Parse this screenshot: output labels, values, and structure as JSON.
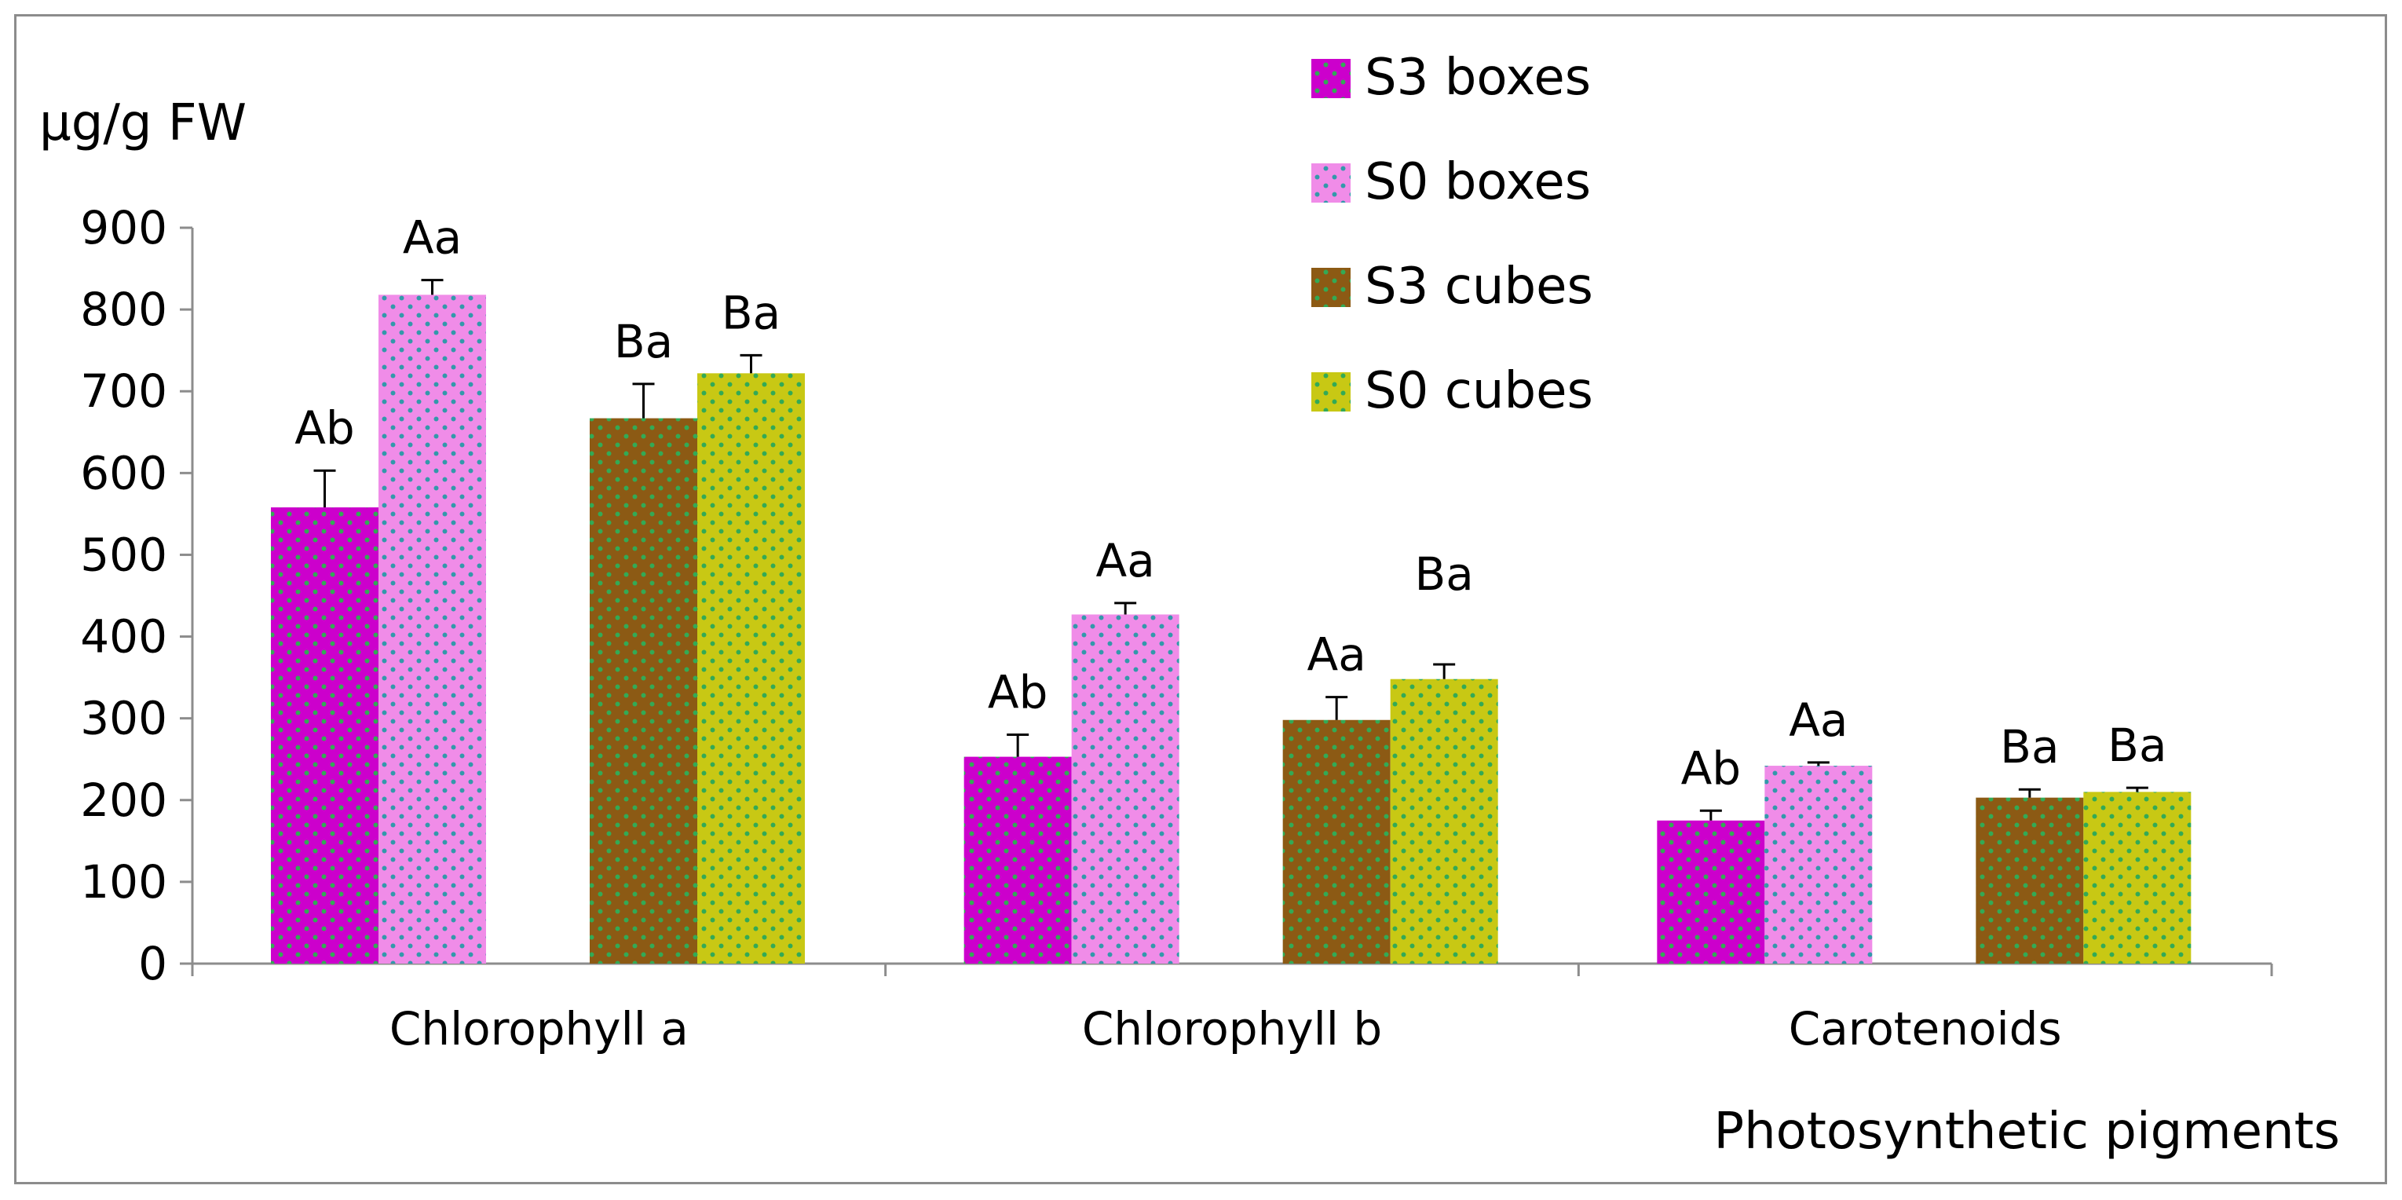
{
  "chart_data": {
    "type": "bar",
    "ylabel": "µg/g FW",
    "xlabel": "Photosynthetic pigments",
    "ylim": [
      0,
      900
    ],
    "yticks": [
      0,
      100,
      200,
      300,
      400,
      500,
      600,
      700,
      800,
      900
    ],
    "categories": [
      "Chlorophyll a",
      "Chlorophyll b",
      "Carotenoids"
    ],
    "legend_position": "top-right",
    "grid": false,
    "series": [
      {
        "name": "S3 boxes",
        "color": "#cc00cc",
        "dot_color": "#33aa55",
        "values": [
          558,
          253,
          175
        ],
        "errors": [
          45,
          27,
          12
        ],
        "labels": [
          "Ab",
          "Ab",
          "Ab"
        ]
      },
      {
        "name": "S0 boxes",
        "color": "#f08ce8",
        "dot_color": "#3399aa",
        "values": [
          818,
          427,
          242
        ],
        "errors": [
          18,
          14,
          4
        ],
        "labels": [
          "Aa",
          "Aa",
          "Aa"
        ]
      },
      {
        "name": "S3 cubes",
        "color": "#8c5a14",
        "dot_color": "#33aa55",
        "values": [
          667,
          298,
          203
        ],
        "errors": [
          42,
          28,
          10
        ],
        "labels": [
          "Ba",
          "Aa",
          "Ba"
        ]
      },
      {
        "name": "S0 cubes",
        "color": "#c8c814",
        "dot_color": "#33aa55",
        "values": [
          722,
          348,
          210
        ],
        "errors": [
          22,
          18,
          5
        ],
        "labels": [
          "Ba",
          "Ba",
          "Ba"
        ]
      }
    ]
  }
}
